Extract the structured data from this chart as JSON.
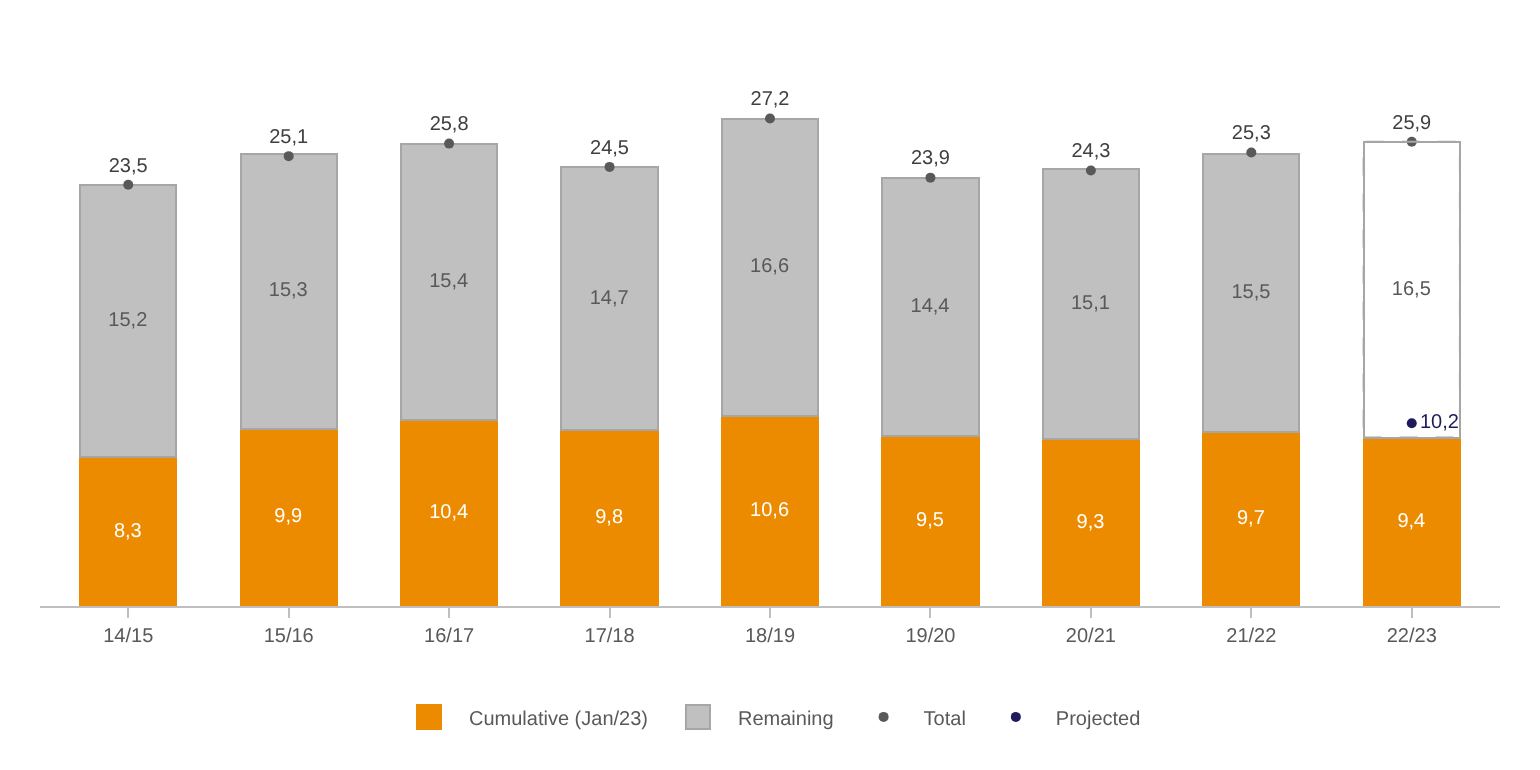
{
  "chart_data": {
    "type": "bar",
    "stacked": true,
    "legend": "bottom",
    "categories": [
      "14/15",
      "15/16",
      "16/17",
      "17/18",
      "18/19",
      "19/20",
      "20/21",
      "21/22",
      "22/23"
    ],
    "series": [
      {
        "name": "Cumulative (Jan/23)",
        "color": "#ed8b00",
        "values": [
          8.3,
          9.9,
          10.4,
          9.8,
          10.6,
          9.5,
          9.3,
          9.7,
          9.4
        ],
        "value_labels": [
          "8,3",
          "9,9",
          "10,4",
          "9,8",
          "10,6",
          "9,5",
          "9,3",
          "9,7",
          "9,4"
        ]
      },
      {
        "name": "Remaining",
        "color": "#c0c0c0",
        "colors": [
          "#c0c0c0",
          "#c0c0c0",
          "#c0c0c0",
          "#c0c0c0",
          "#c0c0c0",
          "#c0c0c0",
          "#c0c0c0",
          "#c0c0c0",
          "#ffffff"
        ],
        "line_style": "dashed",
        "values": [
          15.2,
          15.3,
          15.4,
          14.7,
          16.6,
          14.4,
          15.1,
          15.5,
          16.5
        ],
        "value_labels": [
          "15,2",
          "15,3",
          "15,4",
          "14,7",
          "16,6",
          "14,4",
          "15,1",
          "15,5",
          "16,5"
        ]
      },
      {
        "name": "Total",
        "type": "scatter",
        "marker": "circle",
        "color": "#595959",
        "values": [
          23.5,
          25.1,
          25.8,
          24.5,
          27.2,
          23.9,
          24.3,
          25.3,
          25.9
        ],
        "value_labels": [
          "23,5",
          "25,1",
          "25,8",
          "24,5",
          "27,2",
          "23,9",
          "24,3",
          "25,3",
          "25,9"
        ]
      },
      {
        "name": "Projected",
        "type": "scatter",
        "marker": "circle",
        "color": "#1f1a5c",
        "values": [
          null,
          null,
          null,
          null,
          null,
          null,
          null,
          null,
          10.2
        ],
        "value_labels": [
          null,
          null,
          null,
          null,
          null,
          null,
          null,
          null,
          "10,2"
        ]
      }
    ]
  }
}
